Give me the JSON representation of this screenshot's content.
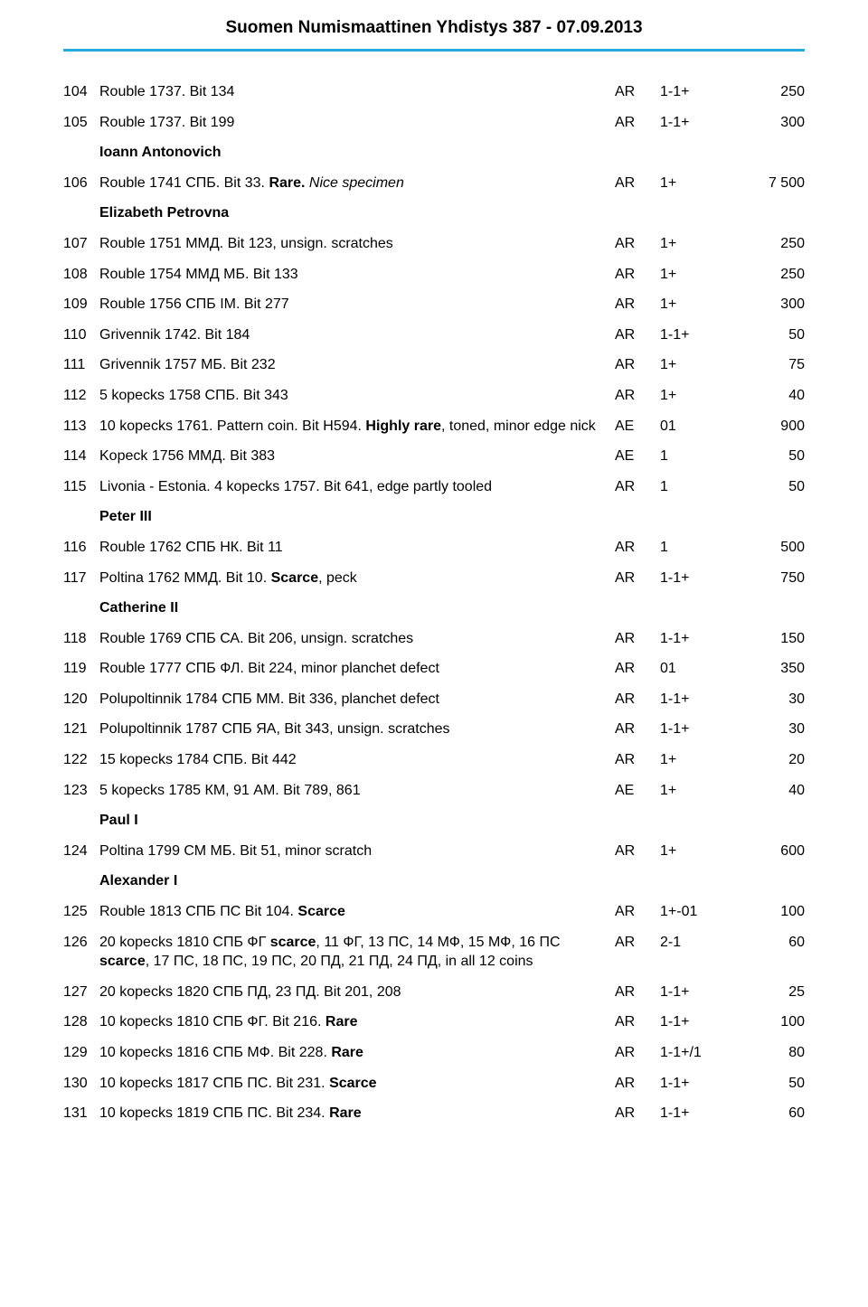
{
  "header": {
    "title": "Suomen Numismaattinen Yhdistys  387 - 07.09.2013"
  },
  "columns": {
    "lot_w": 40,
    "metal_w": 50,
    "grade_w": 80,
    "price_w": 80
  },
  "style": {
    "rule_color": "#29a7df",
    "font_size_body": 16,
    "font_size_header": 19
  },
  "rows": [
    {
      "lot": "104",
      "desc": [
        {
          "t": "Rouble 1737. Bit 134"
        }
      ],
      "metal": "AR",
      "grade": "1-1+",
      "price": "250"
    },
    {
      "lot": "105",
      "desc": [
        {
          "t": "Rouble 1737. Bit 199"
        }
      ],
      "metal": "AR",
      "grade": "1-1+",
      "price": "300"
    },
    {
      "section": "Ioann Antonovich"
    },
    {
      "lot": "106",
      "desc": [
        {
          "t": "Rouble 1741 СПБ. Bit 33. "
        },
        {
          "t": "Rare.",
          "b": true
        },
        {
          "t": " "
        },
        {
          "t": "Nice specimen",
          "i": true
        }
      ],
      "metal": "AR",
      "grade": "1+",
      "price": "7 500"
    },
    {
      "section": "Elizabeth Petrovna"
    },
    {
      "lot": "107",
      "desc": [
        {
          "t": "Rouble 1751 ММД. Bit 123, unsign. scratches"
        }
      ],
      "metal": "AR",
      "grade": "1+",
      "price": "250"
    },
    {
      "lot": "108",
      "desc": [
        {
          "t": "Rouble 1754 ММД МБ. Bit 133"
        }
      ],
      "metal": "AR",
      "grade": "1+",
      "price": "250"
    },
    {
      "lot": "109",
      "desc": [
        {
          "t": "Rouble 1756 СПБ IM. Bit 277"
        }
      ],
      "metal": "AR",
      "grade": "1+",
      "price": "300"
    },
    {
      "lot": "110",
      "desc": [
        {
          "t": "Grivennik 1742. Bit 184"
        }
      ],
      "metal": "AR",
      "grade": "1-1+",
      "price": "50"
    },
    {
      "lot": "111",
      "desc": [
        {
          "t": "Grivennik 1757 МБ. Bit 232"
        }
      ],
      "metal": "AR",
      "grade": "1+",
      "price": "75"
    },
    {
      "lot": "112",
      "desc": [
        {
          "t": "5 kopecks 1758 СПБ. Bit 343"
        }
      ],
      "metal": "AR",
      "grade": "1+",
      "price": "40"
    },
    {
      "lot": "113",
      "desc": [
        {
          "t": "10 kopecks 1761. Pattern coin. Bit H594. "
        },
        {
          "t": "Highly rare",
          "b": true
        },
        {
          "t": ", toned, minor edge nick"
        }
      ],
      "metal": "AE",
      "grade": "01",
      "price": "900"
    },
    {
      "lot": "114",
      "desc": [
        {
          "t": "Kopeck 1756 ММД. Bit 383"
        }
      ],
      "metal": "AE",
      "grade": "1",
      "price": "50"
    },
    {
      "lot": "115",
      "desc": [
        {
          "t": "Livonia - Estonia. 4 kopecks 1757. Bit 641, edge partly tooled"
        }
      ],
      "metal": "AR",
      "grade": "1",
      "price": "50"
    },
    {
      "section": "Peter III"
    },
    {
      "lot": "116",
      "desc": [
        {
          "t": "Rouble 1762 СПБ НК. Bit 11"
        }
      ],
      "metal": "AR",
      "grade": "1",
      "price": "500"
    },
    {
      "lot": "117",
      "desc": [
        {
          "t": "Poltina 1762 ММД. Bit 10. "
        },
        {
          "t": "Scarce",
          "b": true
        },
        {
          "t": ", peck"
        }
      ],
      "metal": "AR",
      "grade": "1-1+",
      "price": "750"
    },
    {
      "section": "Catherine II"
    },
    {
      "lot": "118",
      "desc": [
        {
          "t": "Rouble 1769 СПБ СА. Bit 206, unsign. scratches"
        }
      ],
      "metal": "AR",
      "grade": "1-1+",
      "price": "150"
    },
    {
      "lot": "119",
      "desc": [
        {
          "t": "Rouble 1777 СПБ ФЛ. Bit 224, minor planchet defect"
        }
      ],
      "metal": "AR",
      "grade": "01",
      "price": "350"
    },
    {
      "lot": "120",
      "desc": [
        {
          "t": "Polupoltinnik 1784 СПБ ММ. Bit 336, planchet defect"
        }
      ],
      "metal": "AR",
      "grade": "1-1+",
      "price": "30"
    },
    {
      "lot": "121",
      "desc": [
        {
          "t": "Polupoltinnik 1787 СПБ ЯА, Bit 343, unsign. scratches"
        }
      ],
      "metal": "AR",
      "grade": "1-1+",
      "price": "30"
    },
    {
      "lot": "122",
      "desc": [
        {
          "t": "15 kopecks 1784 СПБ. Bit 442"
        }
      ],
      "metal": "AR",
      "grade": "1+",
      "price": "20"
    },
    {
      "lot": "123",
      "desc": [
        {
          "t": "5 kopecks 1785 КМ, 91 АМ. Bit 789, 861"
        }
      ],
      "metal": "AE",
      "grade": "1+",
      "price": "40"
    },
    {
      "section": "Paul I"
    },
    {
      "lot": "124",
      "desc": [
        {
          "t": "Poltina 1799 СМ МБ. Bit 51, minor scratch"
        }
      ],
      "metal": "AR",
      "grade": "1+",
      "price": "600"
    },
    {
      "section": "Alexander I"
    },
    {
      "lot": "125",
      "desc": [
        {
          "t": "Rouble 1813 СПБ ПС  Bit 104. "
        },
        {
          "t": "Scarce",
          "b": true
        }
      ],
      "metal": "AR",
      "grade": "1+-01",
      "price": "100"
    },
    {
      "lot": "126",
      "desc": [
        {
          "t": "20 kopecks 1810 СПБ ФГ "
        },
        {
          "t": "scarce",
          "b": true
        },
        {
          "t": ", 11 ФГ, 13 ПС, 14 МФ, 15 МФ, 16 ПС "
        },
        {
          "t": "scarce",
          "b": true
        },
        {
          "t": ", 17 ПС, 18 ПС, 19 ПС, 20 ПД, 21 ПД, 24 ПД, in all 12 coins"
        }
      ],
      "metal": "AR",
      "grade": "2-1",
      "price": "60"
    },
    {
      "lot": "127",
      "desc": [
        {
          "t": "20 kopecks 1820 СПБ ПД, 23 ПД.  Bit 201, 208"
        }
      ],
      "metal": "AR",
      "grade": "1-1+",
      "price": "25"
    },
    {
      "lot": "128",
      "desc": [
        {
          "t": "10 kopecks 1810 СПБ ФГ. Bit 216. "
        },
        {
          "t": "Rare",
          "b": true
        }
      ],
      "metal": "AR",
      "grade": "1-1+",
      "price": "100"
    },
    {
      "lot": "129",
      "desc": [
        {
          "t": "10 kopecks 1816 СПБ МФ. Bit 228. "
        },
        {
          "t": "Rare",
          "b": true
        }
      ],
      "metal": "AR",
      "grade": "1-1+/1",
      "price": "80"
    },
    {
      "lot": "130",
      "desc": [
        {
          "t": "10 kopecks 1817 СПБ ПС. Bit 231. "
        },
        {
          "t": "Scarce",
          "b": true
        }
      ],
      "metal": "AR",
      "grade": "1-1+",
      "price": "50"
    },
    {
      "lot": "131",
      "desc": [
        {
          "t": "10 kopecks 1819 СПБ ПС. Bit 234. "
        },
        {
          "t": "Rare",
          "b": true
        }
      ],
      "metal": "AR",
      "grade": "1-1+",
      "price": "60"
    }
  ]
}
